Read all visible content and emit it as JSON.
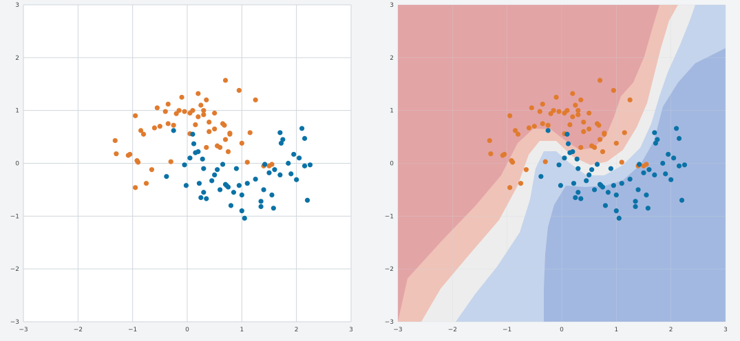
{
  "colors": {
    "class0": "#e07b2e",
    "class1": "#0a72a6",
    "region_red": "#e3a4a6",
    "region_red_light": "#efc3b8",
    "region_white": "#ededed",
    "region_blue_light": "#c4d4ec",
    "region_blue": "#a3b8e0",
    "grid": "#cfd6dc"
  },
  "chart_data": [
    {
      "type": "scatter",
      "title": "",
      "xlabel": "",
      "ylabel": "",
      "xlim": [
        -3,
        3
      ],
      "ylim": [
        -3,
        3
      ],
      "xticks": [
        "−3",
        "−2",
        "−1",
        "0",
        "1",
        "2",
        "3"
      ],
      "yticks": [
        "−3",
        "−2",
        "−1",
        "0",
        "1",
        "2",
        "3"
      ],
      "grid": true,
      "series": [
        {
          "points": [
            [
              -1.32,
              0.43
            ],
            [
              -1.3,
              0.18
            ],
            [
              -1.08,
              0.15
            ],
            [
              -1.05,
              0.17
            ],
            [
              -0.95,
              0.9
            ],
            [
              -0.92,
              0.05
            ],
            [
              -0.9,
              0.02
            ],
            [
              -0.85,
              0.62
            ],
            [
              -0.8,
              0.55
            ],
            [
              -0.95,
              -0.46
            ],
            [
              -0.75,
              -0.38
            ],
            [
              -0.65,
              -0.12
            ],
            [
              -0.6,
              0.67
            ],
            [
              -0.55,
              1.05
            ],
            [
              -0.5,
              0.7
            ],
            [
              -0.4,
              0.98
            ],
            [
              -0.35,
              1.12
            ],
            [
              -0.35,
              0.75
            ],
            [
              -0.25,
              0.72
            ],
            [
              -0.2,
              0.94
            ],
            [
              -0.15,
              1.0
            ],
            [
              -0.1,
              1.25
            ],
            [
              -0.05,
              0.98
            ],
            [
              0.05,
              0.95
            ],
            [
              0.1,
              1.0
            ],
            [
              0.15,
              0.73
            ],
            [
              0.2,
              0.88
            ],
            [
              0.2,
              1.32
            ],
            [
              0.25,
              1.1
            ],
            [
              0.3,
              0.92
            ],
            [
              0.3,
              1.0
            ],
            [
              0.35,
              1.2
            ],
            [
              0.35,
              0.3
            ],
            [
              0.4,
              0.6
            ],
            [
              0.4,
              0.78
            ],
            [
              0.5,
              0.65
            ],
            [
              0.5,
              0.95
            ],
            [
              0.55,
              0.33
            ],
            [
              0.6,
              0.3
            ],
            [
              0.65,
              0.75
            ],
            [
              0.68,
              0.72
            ],
            [
              0.7,
              0.45
            ],
            [
              0.7,
              1.57
            ],
            [
              0.75,
              0.22
            ],
            [
              0.78,
              0.57
            ],
            [
              0.78,
              0.55
            ],
            [
              0.95,
              1.38
            ],
            [
              1.0,
              0.38
            ],
            [
              1.15,
              0.58
            ],
            [
              1.25,
              1.2
            ],
            [
              1.4,
              -0.05
            ],
            [
              1.5,
              -0.05
            ],
            [
              1.55,
              -0.02
            ],
            [
              0.05,
              0.56
            ],
            [
              -0.3,
              0.03
            ],
            [
              1.1,
              0.02
            ]
          ]
        },
        {
          "points": [
            [
              -0.38,
              -0.25
            ],
            [
              -0.25,
              0.62
            ],
            [
              -0.05,
              -0.03
            ],
            [
              0.05,
              0.1
            ],
            [
              0.1,
              0.55
            ],
            [
              0.12,
              0.37
            ],
            [
              0.15,
              0.2
            ],
            [
              0.2,
              0.22
            ],
            [
              0.22,
              -0.38
            ],
            [
              0.25,
              -0.65
            ],
            [
              0.28,
              0.08
            ],
            [
              0.3,
              -0.1
            ],
            [
              0.3,
              -0.55
            ],
            [
              0.35,
              -0.67
            ],
            [
              0.45,
              -0.33
            ],
            [
              0.5,
              -0.22
            ],
            [
              0.55,
              -0.12
            ],
            [
              0.6,
              -0.5
            ],
            [
              0.65,
              -0.02
            ],
            [
              0.7,
              -0.4
            ],
            [
              0.72,
              -0.42
            ],
            [
              0.75,
              -0.45
            ],
            [
              0.8,
              -0.8
            ],
            [
              0.85,
              -0.55
            ],
            [
              0.9,
              -0.1
            ],
            [
              0.95,
              -0.42
            ],
            [
              1.0,
              -0.9
            ],
            [
              1.0,
              -0.6
            ],
            [
              1.05,
              -1.04
            ],
            [
              1.1,
              -0.38
            ],
            [
              1.25,
              -0.3
            ],
            [
              1.35,
              -0.82
            ],
            [
              1.4,
              -0.5
            ],
            [
              1.42,
              -0.02
            ],
            [
              1.5,
              -0.18
            ],
            [
              1.55,
              -0.6
            ],
            [
              1.6,
              -0.12
            ],
            [
              1.7,
              0.58
            ],
            [
              1.72,
              0.38
            ],
            [
              1.75,
              0.45
            ],
            [
              1.85,
              0.0
            ],
            [
              1.9,
              -0.2
            ],
            [
              1.95,
              0.17
            ],
            [
              2.0,
              -0.31
            ],
            [
              2.05,
              0.1
            ],
            [
              2.1,
              0.66
            ],
            [
              2.15,
              0.47
            ],
            [
              2.15,
              -0.05
            ],
            [
              2.2,
              -0.7
            ],
            [
              2.25,
              -0.03
            ],
            [
              -0.02,
              -0.42
            ],
            [
              1.35,
              -0.72
            ],
            [
              1.58,
              -0.85
            ],
            [
              1.7,
              -0.22
            ]
          ]
        }
      ]
    },
    {
      "type": "scatter",
      "title": "",
      "xlabel": "",
      "ylabel": "",
      "xlim": [
        -3,
        3
      ],
      "ylim": [
        -3,
        3
      ],
      "xticks": [
        "−3",
        "−2",
        "−1",
        "0",
        "1",
        "2",
        "3"
      ],
      "yticks": [
        "−3",
        "−2",
        "−1",
        "0",
        "1",
        "2",
        "3"
      ],
      "grid": true,
      "background": "decision regions shaded red to blue",
      "series": [
        {
          "points": [
            [
              -1.32,
              0.43
            ],
            [
              -1.3,
              0.18
            ],
            [
              -1.08,
              0.15
            ],
            [
              -1.05,
              0.17
            ],
            [
              -0.95,
              0.9
            ],
            [
              -0.92,
              0.05
            ],
            [
              -0.9,
              0.02
            ],
            [
              -0.85,
              0.62
            ],
            [
              -0.8,
              0.55
            ],
            [
              -0.95,
              -0.46
            ],
            [
              -0.75,
              -0.38
            ],
            [
              -0.65,
              -0.12
            ],
            [
              -0.6,
              0.67
            ],
            [
              -0.55,
              1.05
            ],
            [
              -0.5,
              0.7
            ],
            [
              -0.4,
              0.98
            ],
            [
              -0.35,
              1.12
            ],
            [
              -0.35,
              0.75
            ],
            [
              -0.25,
              0.72
            ],
            [
              -0.2,
              0.94
            ],
            [
              -0.15,
              1.0
            ],
            [
              -0.1,
              1.25
            ],
            [
              -0.05,
              0.98
            ],
            [
              0.05,
              0.95
            ],
            [
              0.1,
              1.0
            ],
            [
              0.15,
              0.73
            ],
            [
              0.2,
              0.88
            ],
            [
              0.2,
              1.32
            ],
            [
              0.25,
              1.1
            ],
            [
              0.3,
              0.92
            ],
            [
              0.3,
              1.0
            ],
            [
              0.35,
              1.2
            ],
            [
              0.35,
              0.3
            ],
            [
              0.4,
              0.6
            ],
            [
              0.4,
              0.78
            ],
            [
              0.5,
              0.65
            ],
            [
              0.5,
              0.95
            ],
            [
              0.55,
              0.33
            ],
            [
              0.6,
              0.3
            ],
            [
              0.65,
              0.75
            ],
            [
              0.68,
              0.72
            ],
            [
              0.7,
              0.45
            ],
            [
              0.7,
              1.57
            ],
            [
              0.75,
              0.22
            ],
            [
              0.78,
              0.57
            ],
            [
              0.78,
              0.55
            ],
            [
              0.95,
              1.38
            ],
            [
              1.0,
              0.38
            ],
            [
              1.15,
              0.58
            ],
            [
              1.25,
              1.2
            ],
            [
              1.4,
              -0.05
            ],
            [
              1.5,
              -0.05
            ],
            [
              1.55,
              -0.02
            ],
            [
              0.05,
              0.56
            ],
            [
              -0.3,
              0.03
            ],
            [
              1.1,
              0.02
            ]
          ]
        },
        {
          "points": [
            [
              -0.38,
              -0.25
            ],
            [
              -0.25,
              0.62
            ],
            [
              -0.05,
              -0.03
            ],
            [
              0.05,
              0.1
            ],
            [
              0.1,
              0.55
            ],
            [
              0.12,
              0.37
            ],
            [
              0.15,
              0.2
            ],
            [
              0.2,
              0.22
            ],
            [
              0.22,
              -0.38
            ],
            [
              0.25,
              -0.65
            ],
            [
              0.28,
              0.08
            ],
            [
              0.3,
              -0.1
            ],
            [
              0.3,
              -0.55
            ],
            [
              0.35,
              -0.67
            ],
            [
              0.45,
              -0.33
            ],
            [
              0.5,
              -0.22
            ],
            [
              0.55,
              -0.12
            ],
            [
              0.6,
              -0.5
            ],
            [
              0.65,
              -0.02
            ],
            [
              0.7,
              -0.4
            ],
            [
              0.72,
              -0.42
            ],
            [
              0.75,
              -0.45
            ],
            [
              0.8,
              -0.8
            ],
            [
              0.85,
              -0.55
            ],
            [
              0.9,
              -0.1
            ],
            [
              0.95,
              -0.42
            ],
            [
              1.0,
              -0.9
            ],
            [
              1.0,
              -0.6
            ],
            [
              1.05,
              -1.04
            ],
            [
              1.1,
              -0.38
            ],
            [
              1.25,
              -0.3
            ],
            [
              1.35,
              -0.82
            ],
            [
              1.4,
              -0.5
            ],
            [
              1.42,
              -0.02
            ],
            [
              1.5,
              -0.18
            ],
            [
              1.55,
              -0.6
            ],
            [
              1.6,
              -0.12
            ],
            [
              1.7,
              0.58
            ],
            [
              1.72,
              0.38
            ],
            [
              1.75,
              0.45
            ],
            [
              1.85,
              0.0
            ],
            [
              1.9,
              -0.2
            ],
            [
              1.95,
              0.17
            ],
            [
              2.0,
              -0.31
            ],
            [
              2.05,
              0.1
            ],
            [
              2.1,
              0.66
            ],
            [
              2.15,
              0.47
            ],
            [
              2.15,
              -0.05
            ],
            [
              2.2,
              -0.7
            ],
            [
              2.25,
              -0.03
            ],
            [
              -0.02,
              -0.42
            ],
            [
              1.35,
              -0.72
            ],
            [
              1.58,
              -0.85
            ],
            [
              1.7,
              -0.22
            ]
          ]
        }
      ]
    }
  ]
}
